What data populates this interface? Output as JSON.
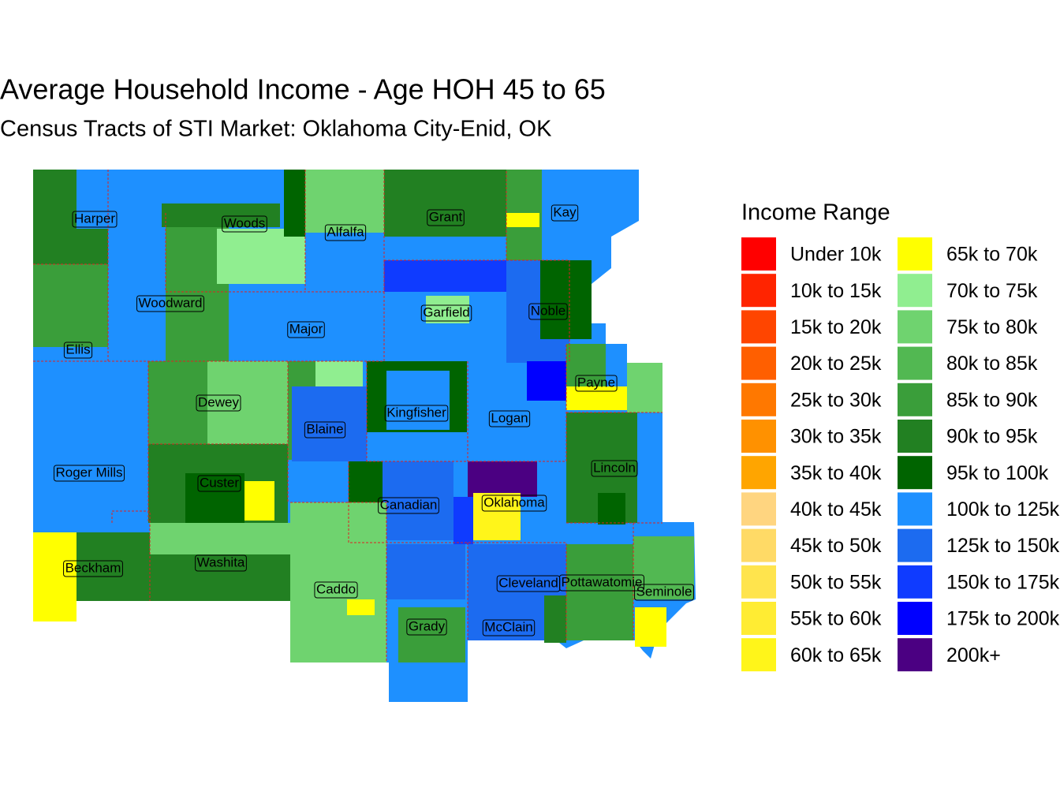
{
  "title": "Average Household Income - Age HOH 45 to 65",
  "subtitle": "Census Tracts of STI Market: Oklahoma City-Enid, OK",
  "legend": {
    "title": "Income Range",
    "entries": [
      {
        "label": "Under 10k",
        "color": "#FF0000"
      },
      {
        "label": "10k to 15k",
        "color": "#FF2400"
      },
      {
        "label": "15k to 20k",
        "color": "#FF4500"
      },
      {
        "label": "20k to 25k",
        "color": "#FF5F00"
      },
      {
        "label": "25k to 30k",
        "color": "#FF7800"
      },
      {
        "label": "30k to 35k",
        "color": "#FF9100"
      },
      {
        "label": "35k to 40k",
        "color": "#FFA500"
      },
      {
        "label": "40k to 45k",
        "color": "#FFD580"
      },
      {
        "label": "45k to 50k",
        "color": "#FFDA66"
      },
      {
        "label": "50k to 55k",
        "color": "#FFE44D"
      },
      {
        "label": "55k to 60k",
        "color": "#FFEC33"
      },
      {
        "label": "60k to 65k",
        "color": "#FFF51A"
      },
      {
        "label": "65k to 70k",
        "color": "#FFFF00"
      },
      {
        "label": "70k to 75k",
        "color": "#90EE90"
      },
      {
        "label": "75k to 80k",
        "color": "#6FD36F"
      },
      {
        "label": "80k to 85k",
        "color": "#52B852"
      },
      {
        "label": "85k to 90k",
        "color": "#3A9E3A"
      },
      {
        "label": "90k to 95k",
        "color": "#228022"
      },
      {
        "label": "95k to 100k",
        "color": "#006400"
      },
      {
        "label": "100k to 125k",
        "color": "#1E90FF"
      },
      {
        "label": "125k to 150k",
        "color": "#1C6BF0"
      },
      {
        "label": "150k to 175k",
        "color": "#0F3BFF"
      },
      {
        "label": "175k to 200k",
        "color": "#0000FF"
      },
      {
        "label": "200k+",
        "color": "#4B0082"
      }
    ]
  },
  "counties": [
    "Harper",
    "Woods",
    "Alfalfa",
    "Grant",
    "Kay",
    "Woodward",
    "Major",
    "Garfield",
    "Noble",
    "Ellis",
    "Dewey",
    "Blaine",
    "Kingfisher",
    "Logan",
    "Payne",
    "Roger Mills",
    "Custer",
    "Canadian",
    "Oklahoma",
    "Lincoln",
    "Beckham",
    "Washita",
    "Caddo",
    "Cleveland",
    "Pottawatomie",
    "Seminole",
    "Grady",
    "McClain"
  ]
}
